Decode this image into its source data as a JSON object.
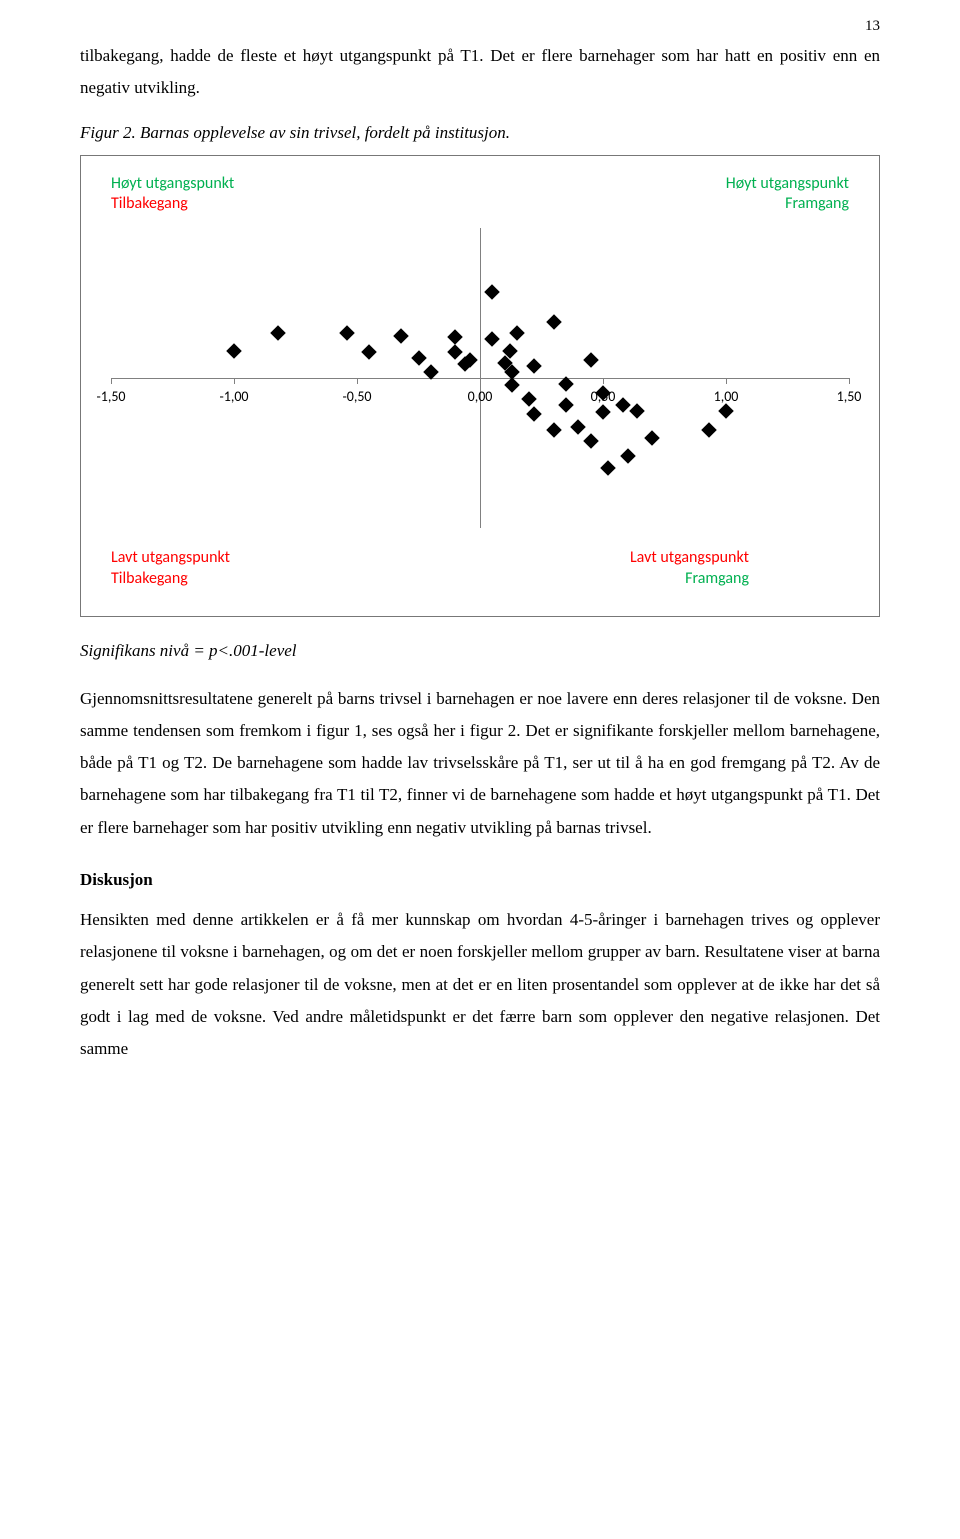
{
  "page_number": "13",
  "para1": "tilbakegang, hadde de fleste et høyt utgangspunkt på T1. Det er flere barnehager som har hatt en positiv enn en negativ utvikling.",
  "figure_caption": "Figur 2. Barnas opplevelse av sin trivsel, fordelt på institusjon.",
  "significance_note": "Signifikans nivå = p<.001-level",
  "para2": "Gjennomsnittsresultatene generelt på barns trivsel i barnehagen er noe lavere enn deres relasjoner til de voksne. Den samme tendensen som fremkom i figur 1, ses også her i figur 2. Det er signifikante forskjeller mellom barnehagene, både på T1 og T2. De barnehagene som hadde lav trivselsskåre på T1, ser ut til å ha en god fremgang på T2. Av de barnehagene som har tilbakegang fra T1 til T2, finner vi de barnehagene som hadde et høyt utgangspunkt på T1. Det er flere barnehager som har positiv utvikling enn negativ utvikling på barnas trivsel.",
  "heading_discussion": "Diskusjon",
  "para3": "Hensikten med denne artikkelen er å få mer kunnskap om hvordan 4-5-åringer i barnehagen trives og opplever relasjonene til voksne i barnehagen, og om det er noen forskjeller mellom grupper av barn. Resultatene viser at barna generelt sett har gode relasjoner til de voksne, men at det er en liten prosentandel som opplever at de ikke har det så godt i lag med de voksne. Ved andre måletidspunkt er det færre barn som opplever den negative relasjonen. Det samme",
  "chart": {
    "type": "scatter",
    "xlim": [
      -1.5,
      1.5
    ],
    "ylim": [
      -1.0,
      1.0
    ],
    "x_ticks": [
      -1.5,
      -1.0,
      -0.5,
      0.0,
      0.5,
      1.0,
      1.5
    ],
    "x_tick_labels": [
      "-1,50",
      "-1,00",
      "-0,50",
      "0,00",
      "0,50",
      "1,00",
      "1,50"
    ],
    "x_tick_y": 0,
    "hline_y": 0,
    "vline_x": 0,
    "background_color": "#ffffff",
    "axis_color": "#808080",
    "point_color": "#000000",
    "point_shape": "diamond",
    "point_size": 11,
    "quadrant_labels": {
      "top_left": {
        "line1": {
          "text": "Høyt utgangspunkt",
          "color": "#00b050"
        },
        "line2": {
          "text": "Tilbakegang",
          "color": "#ff0000"
        }
      },
      "top_right": {
        "line1": {
          "text": "Høyt utgangspunkt",
          "color": "#00b050"
        },
        "line2": {
          "text": "Framgang",
          "color": "#00b050"
        },
        "align": "right"
      },
      "bottom_left": {
        "line1": {
          "text": "Lavt utgangspunkt",
          "color": "#ff0000"
        },
        "line2": {
          "text": "Tilbakegang",
          "color": "#ff0000"
        }
      },
      "bottom_right": {
        "line1": {
          "text": "Lavt utgangspunkt",
          "color": "#ff0000"
        },
        "line2": {
          "text": "Framgang",
          "color": "#00b050"
        },
        "align": "right"
      }
    },
    "label_font_family": "Calibri, Arial, sans-serif",
    "label_fontsize": 16,
    "tick_fontsize": 14,
    "points": [
      {
        "x": -1.0,
        "y": 0.18
      },
      {
        "x": -0.82,
        "y": 0.3
      },
      {
        "x": -0.54,
        "y": 0.3
      },
      {
        "x": -0.45,
        "y": 0.17
      },
      {
        "x": -0.32,
        "y": 0.28
      },
      {
        "x": -0.25,
        "y": 0.13
      },
      {
        "x": -0.2,
        "y": 0.04
      },
      {
        "x": -0.1,
        "y": 0.27
      },
      {
        "x": -0.1,
        "y": 0.17
      },
      {
        "x": -0.06,
        "y": 0.09
      },
      {
        "x": -0.04,
        "y": 0.12
      },
      {
        "x": 0.05,
        "y": 0.57
      },
      {
        "x": 0.05,
        "y": 0.26
      },
      {
        "x": 0.1,
        "y": 0.1
      },
      {
        "x": 0.12,
        "y": 0.18
      },
      {
        "x": 0.13,
        "y": 0.04
      },
      {
        "x": 0.13,
        "y": -0.05
      },
      {
        "x": 0.15,
        "y": 0.3
      },
      {
        "x": 0.2,
        "y": -0.14
      },
      {
        "x": 0.22,
        "y": -0.24
      },
      {
        "x": 0.22,
        "y": 0.08
      },
      {
        "x": 0.3,
        "y": 0.37
      },
      {
        "x": 0.3,
        "y": -0.35
      },
      {
        "x": 0.35,
        "y": -0.04
      },
      {
        "x": 0.35,
        "y": -0.18
      },
      {
        "x": 0.4,
        "y": -0.33
      },
      {
        "x": 0.45,
        "y": 0.12
      },
      {
        "x": 0.45,
        "y": -0.42
      },
      {
        "x": 0.5,
        "y": -0.1
      },
      {
        "x": 0.5,
        "y": -0.23
      },
      {
        "x": 0.52,
        "y": -0.6
      },
      {
        "x": 0.58,
        "y": -0.18
      },
      {
        "x": 0.6,
        "y": -0.52
      },
      {
        "x": 0.64,
        "y": -0.22
      },
      {
        "x": 0.7,
        "y": -0.4
      },
      {
        "x": 0.93,
        "y": -0.35
      },
      {
        "x": 1.0,
        "y": -0.22
      }
    ]
  }
}
